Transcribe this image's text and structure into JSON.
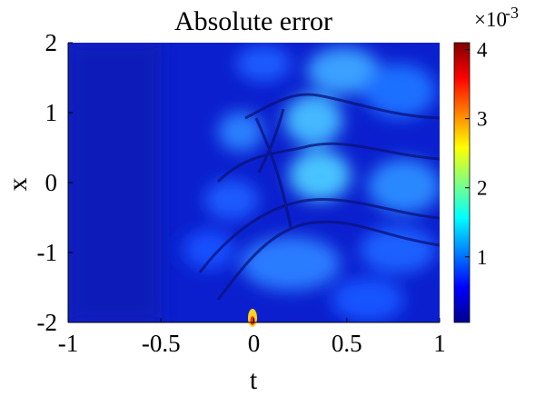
{
  "chart_data": {
    "type": "heatmap",
    "title": "Absolute error",
    "xlabel": "t",
    "ylabel": "x",
    "xlim": [
      -1,
      1
    ],
    "ylim": [
      -2,
      2
    ],
    "xticks": [
      "-1",
      "-0.5",
      "0",
      "0.5",
      "1"
    ],
    "yticks": [
      "2",
      "1",
      "0",
      "-1",
      "-2"
    ],
    "colorbar": {
      "colormap": "jet",
      "range": [
        5e-05,
        0.0041
      ],
      "ticks": [
        "1",
        "2",
        "3",
        "4"
      ],
      "scale_label": "×10",
      "scale_exponent": "-3"
    },
    "features": [
      {
        "t": 0.5,
        "x": 1.55,
        "value": 0.0016
      },
      {
        "t": 0.33,
        "x": 0.85,
        "value": 0.0018
      },
      {
        "t": 0.35,
        "x": 0.05,
        "value": 0.0019
      },
      {
        "t": 0.79,
        "x": 1.4,
        "value": 0.0011
      },
      {
        "t": 0.82,
        "x": 0.0,
        "value": 0.0011
      },
      {
        "t": 0.85,
        "x": -1.25,
        "value": 0.0009
      },
      {
        "t": 0.02,
        "x": -1.95,
        "value": 0.0041
      },
      {
        "t": -0.07,
        "x": 0.72,
        "value": 0.001
      }
    ],
    "grid": false
  }
}
